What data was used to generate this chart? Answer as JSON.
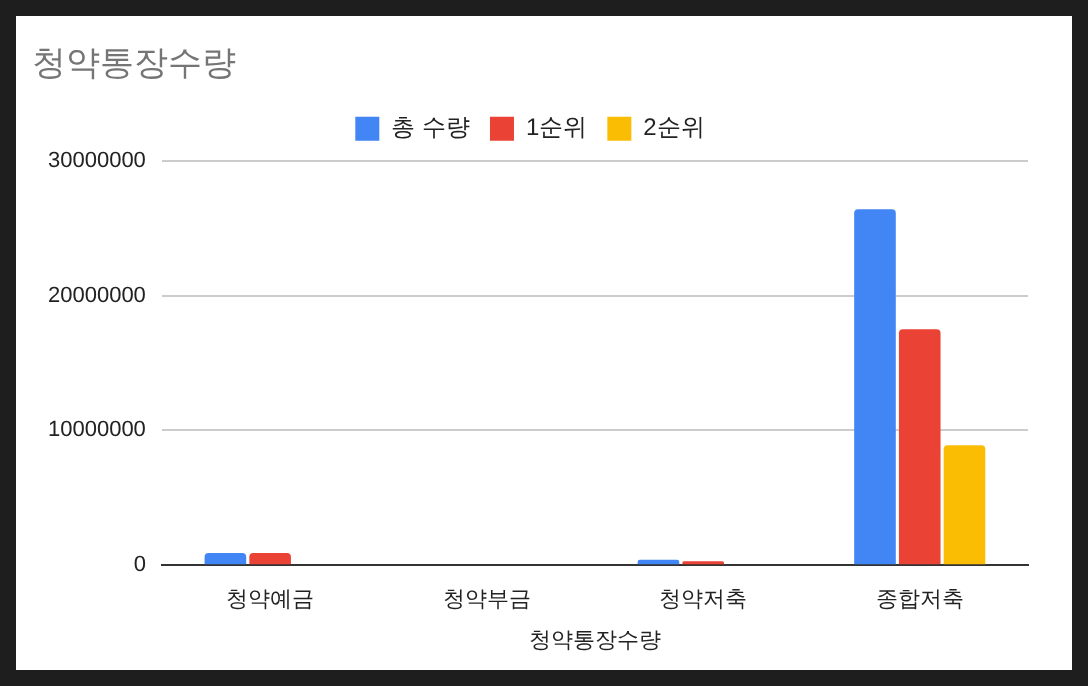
{
  "chart_data": {
    "type": "bar",
    "title": "청약통장수량",
    "xlabel": "청약통장수량",
    "categories": [
      "청약예금",
      "청약부금",
      "청약저축",
      "종합저축"
    ],
    "series": [
      {
        "name": "총 수량",
        "color": "#4285f4",
        "values": [
          900000,
          null,
          400000,
          26400000
        ]
      },
      {
        "name": "1순위",
        "color": "#ea4335",
        "values": [
          900000,
          null,
          300000,
          17500000
        ]
      },
      {
        "name": "2순위",
        "color": "#fbbc04",
        "values": [
          null,
          null,
          null,
          8900000
        ]
      }
    ],
    "ylim": [
      0,
      30000000
    ],
    "yticks": [
      0,
      10000000,
      20000000,
      30000000
    ],
    "grid": "y",
    "legend": "top"
  }
}
